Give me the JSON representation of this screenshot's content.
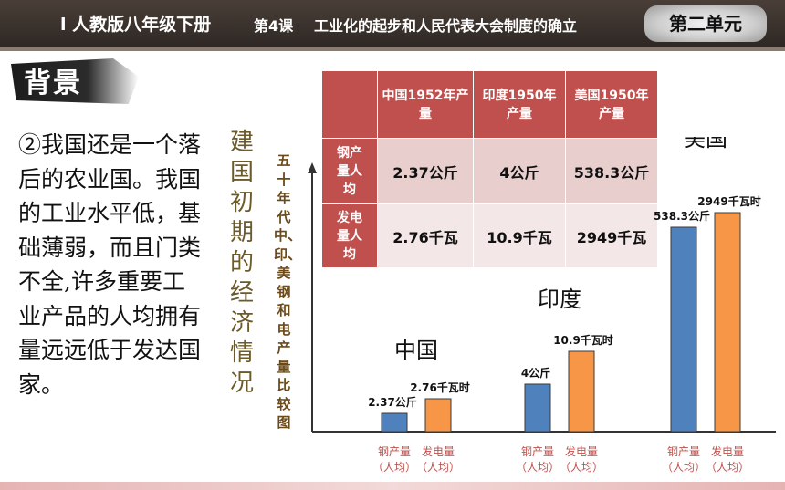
{
  "header": {
    "series": "l 人教版八年级下册",
    "lesson": "第4课",
    "title": "工业化的起步和人民代表大会制度的确立",
    "unit": "第二单元"
  },
  "section_label": "背景",
  "body_text": "②我国还是一个落后的农业国。我国的工业水平低，基础薄弱，而且门类不全,许多重要工业产品的人均拥有量远远低于发达国家。",
  "vertical_title": "建国初期的经济情况",
  "vertical_subtitle": "五十年代中、印、美钢和电产量比较图",
  "table": {
    "headers": [
      "中国1952年产量",
      "印度1950年产量",
      "美国1950年产量"
    ],
    "rows": [
      {
        "label": "钢产量人均",
        "values": [
          "2.37公斤",
          "4公斤",
          "538.3公斤"
        ]
      },
      {
        "label": "发电量人均",
        "values": [
          "2.76千瓦",
          "10.9千瓦",
          "2949千瓦"
        ]
      }
    ]
  },
  "colors": {
    "steel": "#4f81bd",
    "power": "#f79646",
    "header_red": "#c0504d"
  },
  "chart_data": {
    "type": "bar",
    "categories": [
      "中国",
      "印度",
      "美国"
    ],
    "series": [
      {
        "name": "钢产量（人均）",
        "values": [
          2.37,
          4,
          538.3
        ],
        "labels": [
          "2.37公斤",
          "4公斤",
          "538.3公斤"
        ]
      },
      {
        "name": "发电量（人均）",
        "values": [
          2.76,
          10.9,
          2949
        ],
        "labels": [
          "2.76千瓦时",
          "10.9千瓦时",
          "2949千瓦时"
        ]
      }
    ],
    "bar_labels": [
      "钢产量\n（人均）",
      "发电量\n（人均）"
    ],
    "scale": "not-to-scale",
    "title": "",
    "xlabel": "",
    "ylabel": ""
  }
}
